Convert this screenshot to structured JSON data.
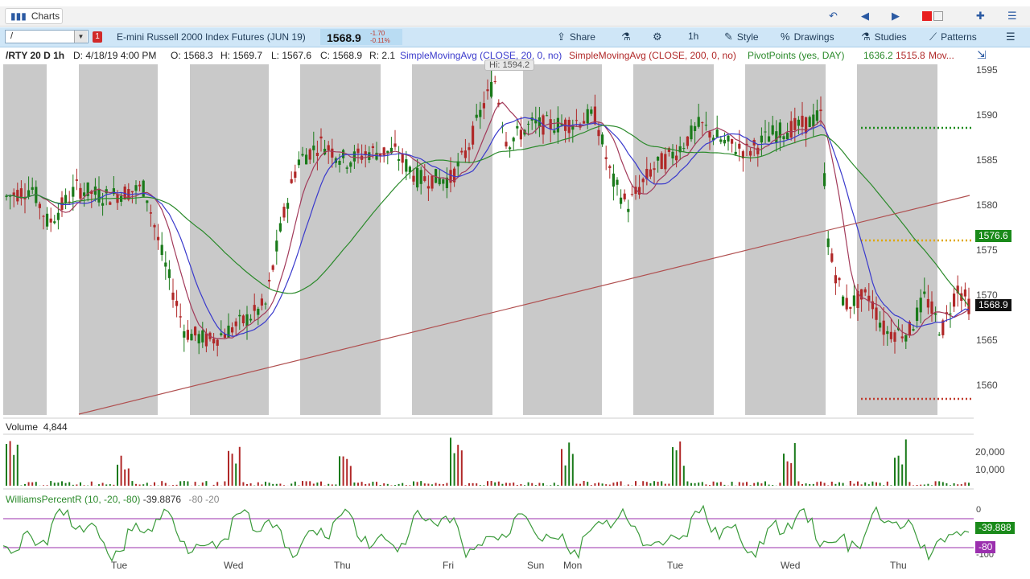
{
  "app": {
    "tab_label": "Charts"
  },
  "toolbar": {
    "symbol_input": "/",
    "alert_badge": "1",
    "instrument": "E-mini Russell 2000 Index Futures (JUN 19)",
    "price": "1568.9",
    "change": "-1.70",
    "change_pct": "-0.11%",
    "share": "Share",
    "timeframe": "1h",
    "style": "Style",
    "drawings": "Drawings",
    "studies": "Studies",
    "patterns": "Patterns"
  },
  "infobar": {
    "symbol": "/RTY 20 D 1h",
    "date": "D: 4/18/19 4:00 PM",
    "open": "O: 1568.3",
    "high": "H: 1569.7",
    "low": "L: 1567.6",
    "close": "C: 1568.9",
    "range": "R: 2.1",
    "sma20": "SimpleMovingAvg (CLOSE, 20, 0, no)",
    "sma200": "SimpleMovingAvg (CLOSE, 200, 0, no)",
    "pivot": "PivotPoints (yes, DAY)",
    "pivot_r": "1636.2",
    "pivot_s": "1515.8",
    "more": "Mov..."
  },
  "price_axis": {
    "ticks": [
      "1595",
      "1590",
      "1585",
      "1580",
      "1575",
      "1570",
      "1565",
      "1560"
    ],
    "hi_label": "Hi: 1594.2",
    "tag_green": "1576.6",
    "tag_last": "1568.9"
  },
  "volume": {
    "label": "Volume",
    "value": "4,844",
    "ticks": [
      "20,000",
      "10,000"
    ]
  },
  "williams": {
    "label": "WilliamsPercentR (10, -20, -80)",
    "value": "-39.8876",
    "upper": "-80",
    "lower": "-20",
    "ticks": [
      "0",
      "-100"
    ],
    "tag_value": "-39.888",
    "tag_level": "-80"
  },
  "x_axis": {
    "days": [
      "Tue",
      "Wed",
      "Thu",
      "Fri",
      "Sun",
      "Mon",
      "Tue",
      "Wed",
      "Thu"
    ]
  },
  "colors": {
    "up": "#1a7a1a",
    "down": "#b02828",
    "sma20": "#3a3acc",
    "sma200": "#2b8a2b",
    "session_bg": "#c9c9c9"
  }
}
